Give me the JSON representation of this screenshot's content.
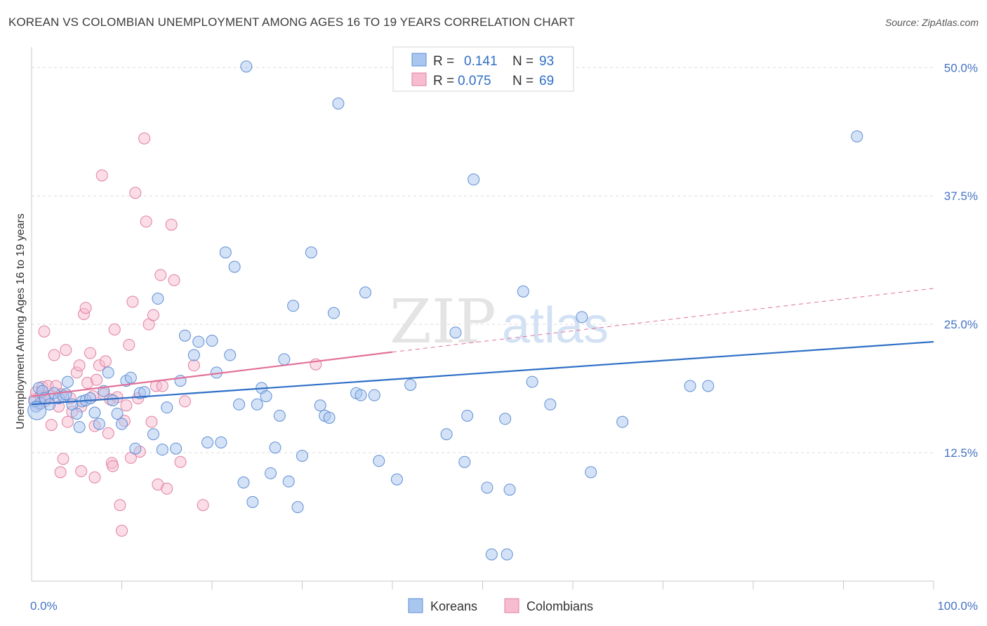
{
  "title": "KOREAN VS COLOMBIAN UNEMPLOYMENT AMONG AGES 16 TO 19 YEARS CORRELATION CHART",
  "source": "Source: ZipAtlas.com",
  "watermark": {
    "zip": "ZIP",
    "atlas": "atlas"
  },
  "colors": {
    "korean_fill": "#a9c6ef",
    "korean_stroke": "#5f8fd4",
    "korean_line": "#2f6fc6",
    "colombian_fill": "#f6bcd0",
    "colombian_stroke": "#e27fa2",
    "colombian_line": "#e2709a",
    "tick_text": "#4472c4",
    "grid": "#dcdcdc"
  },
  "legend": {
    "rows": [
      {
        "r_label": "R =",
        "r_value": "0.141",
        "n_label": "N =",
        "n_value": "93"
      },
      {
        "r_label": "R =",
        "r_value": "0.075",
        "n_label": "N =",
        "n_value": "69"
      }
    ]
  },
  "chart_data": {
    "type": "scatter",
    "title": "KOREAN VS COLOMBIAN UNEMPLOYMENT AMONG AGES 16 TO 19 YEARS CORRELATION CHART",
    "xlabel": "",
    "ylabel": "Unemployment Among Ages 16 to 19 years",
    "xlim": [
      0,
      100
    ],
    "ylim": [
      0,
      52
    ],
    "x_tick_labels": [
      "0.0%",
      "100.0%"
    ],
    "y_ticks": [
      12.5,
      25.0,
      37.5,
      50.0
    ],
    "y_tick_labels": [
      "12.5%",
      "25.0%",
      "37.5%",
      "50.0%"
    ],
    "grid": "horizontal dashed",
    "legend_placement": "top-center and bottom",
    "series": [
      {
        "name": "Koreans",
        "r": 0.141,
        "n": 93,
        "trend": {
          "x": [
            0,
            100
          ],
          "y": [
            17.2,
            23.3
          ],
          "style": "solid"
        },
        "points": [
          [
            0.5,
            17.0
          ],
          [
            0.8,
            18.8
          ],
          [
            1.0,
            17.3
          ],
          [
            1.2,
            18.5
          ],
          [
            1.5,
            17.8
          ],
          [
            2.0,
            17.2
          ],
          [
            2.5,
            18.3
          ],
          [
            3.0,
            17.8
          ],
          [
            3.5,
            18.0
          ],
          [
            4.0,
            19.4
          ],
          [
            4.5,
            17.2
          ],
          [
            5.0,
            16.3
          ],
          [
            5.3,
            15.0
          ],
          [
            5.6,
            17.5
          ],
          [
            6.0,
            17.6
          ],
          [
            6.5,
            17.8
          ],
          [
            7.0,
            16.4
          ],
          [
            7.5,
            15.3
          ],
          [
            8.0,
            18.5
          ],
          [
            8.5,
            20.3
          ],
          [
            9.0,
            17.6
          ],
          [
            9.5,
            16.3
          ],
          [
            10.0,
            15.3
          ],
          [
            10.5,
            19.5
          ],
          [
            11.0,
            19.8
          ],
          [
            11.5,
            12.9
          ],
          [
            12.0,
            18.3
          ],
          [
            12.5,
            18.4
          ],
          [
            13.5,
            14.3
          ],
          [
            14.0,
            27.5
          ],
          [
            14.5,
            12.8
          ],
          [
            15.0,
            16.9
          ],
          [
            16.0,
            12.9
          ],
          [
            16.5,
            19.5
          ],
          [
            17.0,
            23.9
          ],
          [
            18.0,
            22.0
          ],
          [
            18.5,
            23.3
          ],
          [
            19.5,
            13.5
          ],
          [
            20.0,
            23.4
          ],
          [
            20.5,
            20.3
          ],
          [
            21.0,
            13.5
          ],
          [
            21.5,
            32.0
          ],
          [
            22.0,
            22.0
          ],
          [
            22.5,
            30.6
          ],
          [
            23.0,
            17.2
          ],
          [
            23.5,
            9.6
          ],
          [
            23.8,
            50.1
          ],
          [
            24.5,
            7.7
          ],
          [
            25.0,
            17.2
          ],
          [
            25.5,
            18.8
          ],
          [
            26.0,
            18.0
          ],
          [
            26.5,
            10.5
          ],
          [
            27.0,
            13.0
          ],
          [
            27.5,
            16.1
          ],
          [
            28.0,
            21.6
          ],
          [
            28.5,
            9.7
          ],
          [
            29.0,
            26.8
          ],
          [
            29.5,
            7.2
          ],
          [
            30.0,
            12.2
          ],
          [
            31.0,
            32.0
          ],
          [
            32.0,
            17.1
          ],
          [
            32.5,
            16.1
          ],
          [
            33.0,
            15.9
          ],
          [
            33.5,
            26.1
          ],
          [
            34.0,
            46.5
          ],
          [
            36.0,
            18.3
          ],
          [
            36.5,
            18.1
          ],
          [
            37.0,
            28.1
          ],
          [
            38.0,
            18.1
          ],
          [
            38.5,
            11.7
          ],
          [
            40.5,
            9.9
          ],
          [
            42.0,
            19.1
          ],
          [
            46.0,
            14.3
          ],
          [
            47.0,
            24.2
          ],
          [
            48.0,
            11.6
          ],
          [
            48.3,
            16.1
          ],
          [
            49.0,
            39.1
          ],
          [
            50.5,
            9.1
          ],
          [
            51.0,
            2.6
          ],
          [
            52.5,
            15.8
          ],
          [
            52.7,
            2.6
          ],
          [
            53.0,
            8.9
          ],
          [
            54.5,
            28.2
          ],
          [
            55.5,
            19.4
          ],
          [
            57.5,
            17.2
          ],
          [
            61.0,
            25.7
          ],
          [
            62.0,
            10.6
          ],
          [
            65.5,
            15.5
          ],
          [
            91.5,
            43.3
          ],
          [
            73.0,
            19.0
          ],
          [
            75.0,
            19.0
          ],
          [
            0.3,
            17.5
          ],
          [
            3.8,
            18.2
          ]
        ]
      },
      {
        "name": "Colombians",
        "r": 0.075,
        "n": 69,
        "trend": {
          "x": [
            0,
            40
          ],
          "y": [
            18.0,
            22.3
          ],
          "style": "solid",
          "extension": {
            "x": [
              40,
              100
            ],
            "y": [
              22.3,
              28.5
            ],
            "style": "dashed"
          }
        },
        "points": [
          [
            0.3,
            17.7
          ],
          [
            0.5,
            18.4
          ],
          [
            0.8,
            17.2
          ],
          [
            1.0,
            18.0
          ],
          [
            1.2,
            18.9
          ],
          [
            1.4,
            24.3
          ],
          [
            1.5,
            17.5
          ],
          [
            1.8,
            19.0
          ],
          [
            2.0,
            18.0
          ],
          [
            2.2,
            15.2
          ],
          [
            2.5,
            22.0
          ],
          [
            2.7,
            19.0
          ],
          [
            3.0,
            17.0
          ],
          [
            3.3,
            18.2
          ],
          [
            3.5,
            11.9
          ],
          [
            3.8,
            22.5
          ],
          [
            4.0,
            15.5
          ],
          [
            4.3,
            17.8
          ],
          [
            4.5,
            16.5
          ],
          [
            5.0,
            20.3
          ],
          [
            5.3,
            21.0
          ],
          [
            5.5,
            17.0
          ],
          [
            5.8,
            26.0
          ],
          [
            6.0,
            26.6
          ],
          [
            6.2,
            19.3
          ],
          [
            6.5,
            22.2
          ],
          [
            6.8,
            18.0
          ],
          [
            7.0,
            15.1
          ],
          [
            7.2,
            19.6
          ],
          [
            7.5,
            21.0
          ],
          [
            7.8,
            39.5
          ],
          [
            8.0,
            18.2
          ],
          [
            8.2,
            21.4
          ],
          [
            8.5,
            14.4
          ],
          [
            8.7,
            17.7
          ],
          [
            8.9,
            11.5
          ],
          [
            9.0,
            11.2
          ],
          [
            9.2,
            24.5
          ],
          [
            9.5,
            17.9
          ],
          [
            9.8,
            7.4
          ],
          [
            10.0,
            4.9
          ],
          [
            10.3,
            15.6
          ],
          [
            10.5,
            17.1
          ],
          [
            10.8,
            23.0
          ],
          [
            11.0,
            12.0
          ],
          [
            11.2,
            27.2
          ],
          [
            11.5,
            37.8
          ],
          [
            11.8,
            17.8
          ],
          [
            12.0,
            12.6
          ],
          [
            12.5,
            43.1
          ],
          [
            12.7,
            35.0
          ],
          [
            13.0,
            25.0
          ],
          [
            13.3,
            15.5
          ],
          [
            13.5,
            25.9
          ],
          [
            13.8,
            19.0
          ],
          [
            14.0,
            9.4
          ],
          [
            14.3,
            29.8
          ],
          [
            14.5,
            19.0
          ],
          [
            15.0,
            9.0
          ],
          [
            15.5,
            34.7
          ],
          [
            15.8,
            29.3
          ],
          [
            16.5,
            11.6
          ],
          [
            18.0,
            21.0
          ],
          [
            19.0,
            7.4
          ],
          [
            3.2,
            10.6
          ],
          [
            5.5,
            10.7
          ],
          [
            7.0,
            10.1
          ],
          [
            31.5,
            21.1
          ],
          [
            17.0,
            17.5
          ]
        ]
      }
    ]
  },
  "bottom_legend": {
    "items": [
      "Koreans",
      "Colombians"
    ]
  },
  "axes": {
    "ylabel": "Unemployment Among Ages 16 to 19 years",
    "x_left": "0.0%",
    "x_right": "100.0%"
  }
}
